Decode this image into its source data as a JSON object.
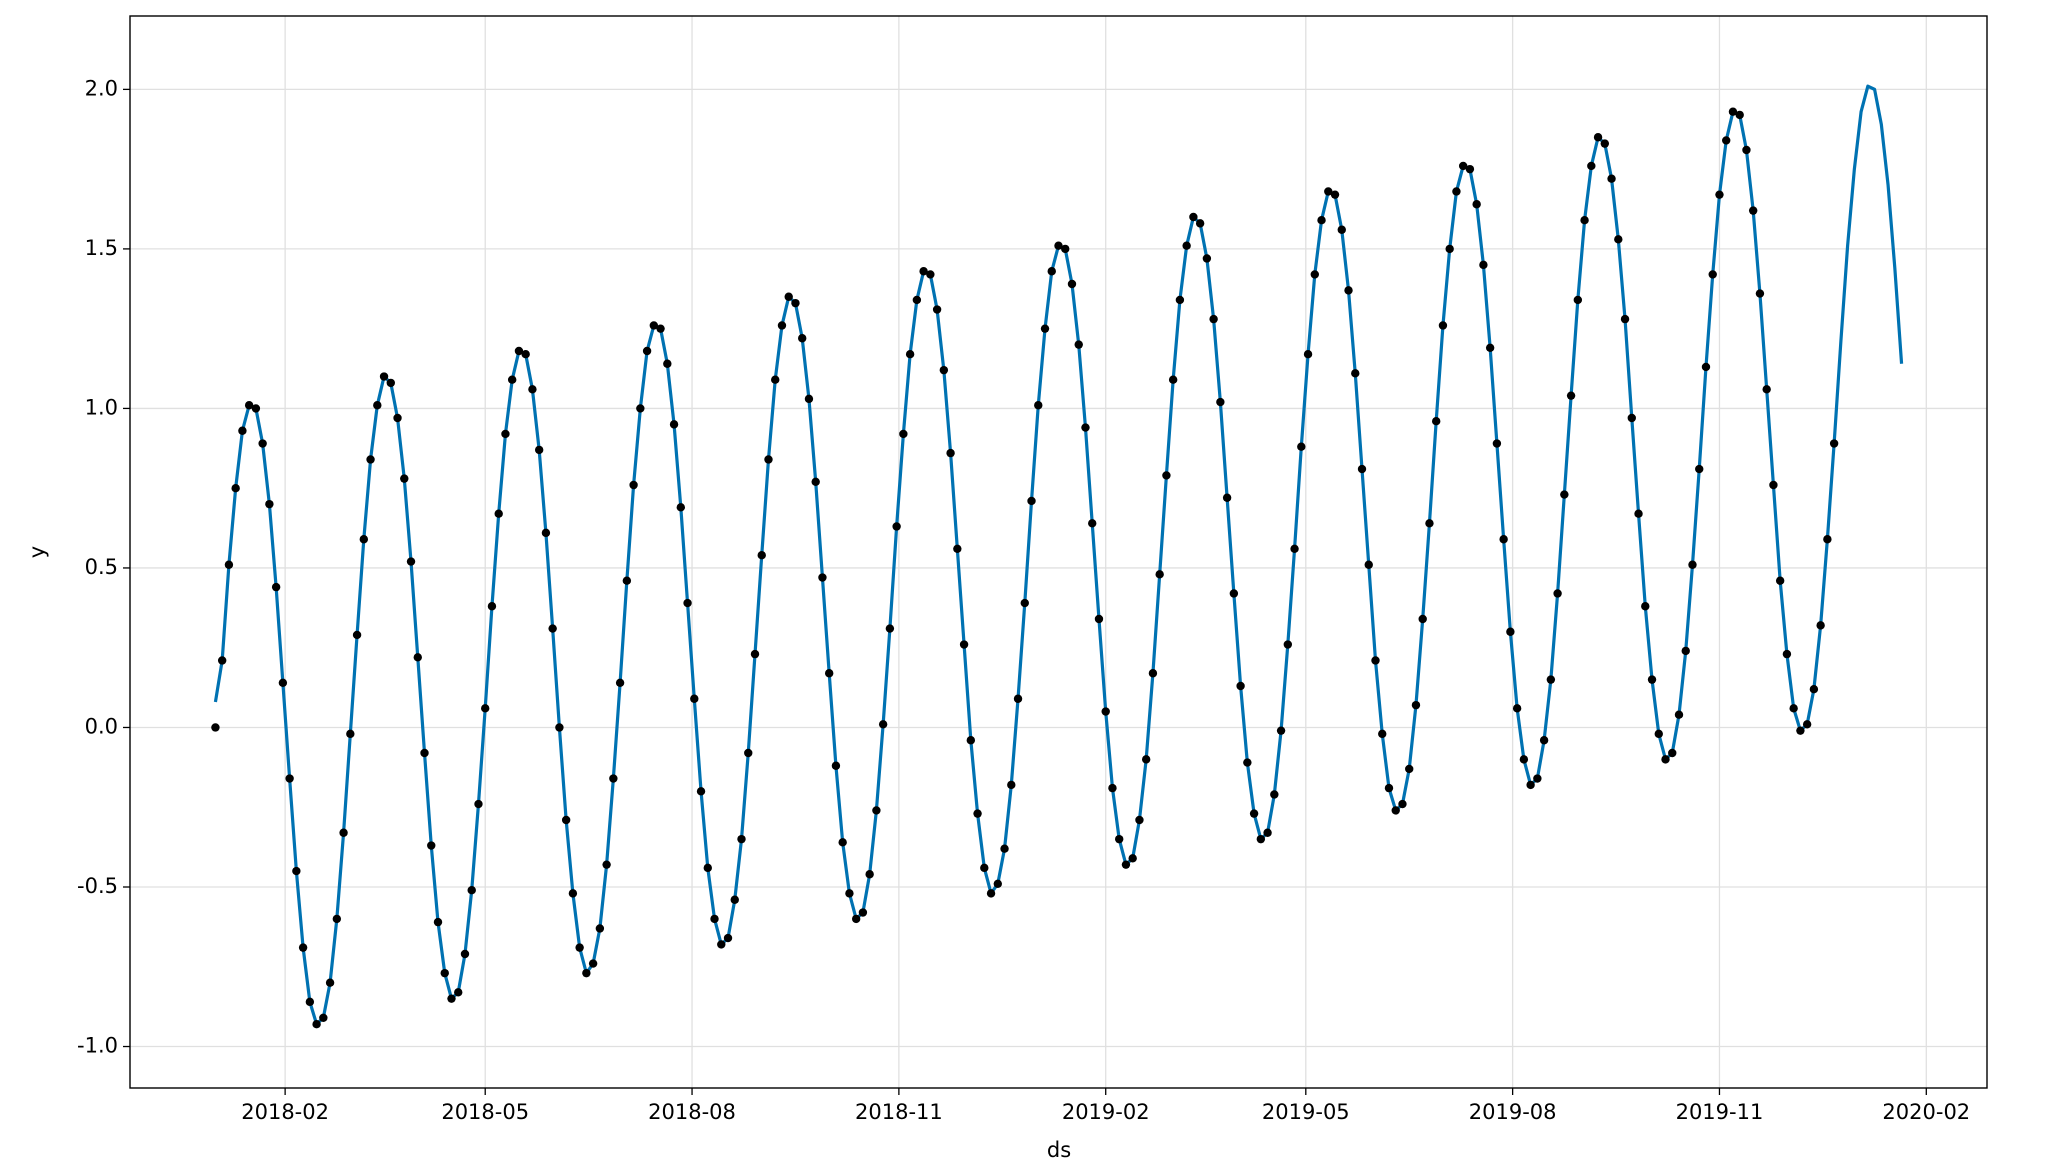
{
  "chart_data": {
    "type": "line",
    "xlabel": "ds",
    "ylabel": "y",
    "x": [
      0,
      3,
      6,
      9,
      12,
      15,
      18,
      21,
      24,
      27,
      30,
      33,
      36,
      39,
      42,
      45,
      48,
      51,
      54,
      57,
      60,
      63,
      66,
      69,
      72,
      75,
      78,
      81,
      84,
      87,
      90,
      93,
      96,
      99,
      102,
      105,
      108,
      111,
      114,
      117,
      120,
      123,
      126,
      129,
      132,
      135,
      138,
      141,
      144,
      147,
      150,
      153,
      156,
      159,
      162,
      165,
      168,
      171,
      174,
      177,
      180,
      183,
      186,
      189,
      192,
      195,
      198,
      201,
      204,
      207,
      210,
      213,
      216,
      219,
      222,
      225,
      228,
      231,
      234,
      237,
      240,
      243,
      246,
      249,
      252,
      255,
      258,
      261,
      264,
      267,
      270,
      273,
      276,
      279,
      282,
      285,
      288,
      291,
      294,
      297,
      300,
      303,
      306,
      309,
      312,
      315,
      318,
      321,
      324,
      327,
      330,
      333,
      336,
      339,
      342,
      345,
      348,
      351,
      354,
      357,
      360,
      363,
      366,
      369,
      372,
      375,
      378,
      381,
      384,
      387,
      390,
      393,
      396,
      399,
      402,
      405,
      408,
      411,
      414,
      417,
      420,
      423,
      426,
      429,
      432,
      435,
      438,
      441,
      444,
      447,
      450,
      453,
      456,
      459,
      462,
      465,
      468,
      471,
      474,
      477,
      480,
      483,
      486,
      489,
      492,
      495,
      498,
      501,
      504,
      507,
      510,
      513,
      516,
      519,
      522,
      525,
      528,
      531,
      534,
      537,
      540,
      543,
      546,
      549,
      552,
      555,
      558,
      561,
      564,
      567,
      570,
      573,
      576,
      579,
      582,
      585,
      588,
      591,
      594,
      597,
      600,
      603,
      606,
      609,
      612,
      615,
      618,
      621,
      624,
      627,
      630,
      633,
      636,
      639,
      642,
      645,
      648,
      651,
      654,
      657,
      660,
      663,
      666,
      669,
      672,
      675,
      678,
      681,
      684,
      687,
      690,
      693,
      696,
      699,
      702,
      705,
      708,
      711,
      714,
      717,
      720,
      723,
      726,
      729,
      732,
      735,
      738,
      741,
      744,
      747,
      750
    ],
    "series": [
      {
        "color": "#000000",
        "values": [
          0,
          0.21,
          0.51,
          0.75,
          0.93,
          1.01,
          1.0,
          0.89,
          0.7,
          0.44,
          0.14,
          -0.16,
          -0.45,
          -0.69,
          -0.86,
          -0.93,
          -0.91,
          -0.8,
          -0.6,
          -0.33,
          -0.02,
          0.29,
          0.59,
          0.84,
          1.01,
          1.1,
          1.08,
          0.97,
          0.78,
          0.52,
          0.22,
          -0.08,
          -0.37,
          -0.61,
          -0.77,
          -0.85,
          -0.83,
          -0.71,
          -0.51,
          -0.24,
          0.06,
          0.38,
          0.67,
          0.92,
          1.09,
          1.18,
          1.17,
          1.06,
          0.87,
          0.61,
          0.31,
          0.0,
          -0.29,
          -0.52,
          -0.69,
          -0.77,
          -0.74,
          -0.63,
          -0.43,
          -0.16,
          0.14,
          0.46,
          0.76,
          1.0,
          1.18,
          1.26,
          1.25,
          1.14,
          0.95,
          0.69,
          0.39,
          0.09,
          -0.2,
          -0.44,
          -0.6,
          -0.68,
          -0.66,
          -0.54,
          -0.35,
          -0.08,
          0.23,
          0.54,
          0.84,
          1.09,
          1.26,
          1.35,
          1.33,
          1.22,
          1.03,
          0.77,
          0.47,
          0.17,
          -0.12,
          -0.36,
          -0.52,
          -0.6,
          -0.58,
          -0.46,
          -0.26,
          0.01,
          0.31,
          0.63,
          0.92,
          1.17,
          1.34,
          1.43,
          1.42,
          1.31,
          1.12,
          0.86,
          0.56,
          0.26,
          -0.04,
          -0.27,
          -0.44,
          -0.52,
          -0.49,
          -0.38,
          -0.18,
          0.09,
          0.39,
          0.71,
          1.01,
          1.25,
          1.43,
          1.51,
          1.5,
          1.39,
          1.2,
          0.94,
          0.64,
          0.34,
          0.05,
          -0.19,
          -0.35,
          -0.43,
          -0.41,
          -0.29,
          -0.1,
          0.17,
          0.48,
          0.79,
          1.09,
          1.34,
          1.51,
          1.6,
          1.58,
          1.47,
          1.28,
          1.02,
          0.72,
          0.42,
          0.13,
          -0.11,
          -0.27,
          -0.35,
          -0.33,
          -0.21,
          -0.01,
          0.26,
          0.56,
          0.88,
          1.17,
          1.42,
          1.59,
          1.68,
          1.67,
          1.56,
          1.37,
          1.11,
          0.81,
          0.51,
          0.21,
          -0.02,
          -0.19,
          -0.26,
          -0.24,
          -0.13,
          0.07,
          0.34,
          0.64,
          0.96,
          1.26,
          1.5,
          1.68,
          1.76,
          1.75,
          1.64,
          1.45,
          1.19,
          0.89,
          0.59,
          0.3,
          0.06,
          -0.1,
          -0.18,
          -0.16,
          -0.04,
          0.15,
          0.42,
          0.73,
          1.04,
          1.34,
          1.59,
          1.76,
          1.85,
          1.83,
          1.72,
          1.53,
          1.28,
          0.97,
          0.67,
          0.38,
          0.15,
          -0.02,
          -0.1,
          -0.08,
          0.04,
          0.24,
          0.51,
          0.81,
          1.13,
          1.42,
          1.67,
          1.84,
          1.93,
          1.92,
          1.81,
          1.62,
          1.36,
          1.06,
          0.76,
          0.46,
          0.23,
          0.06,
          -0.01,
          0.01,
          0.12,
          0.32,
          0.59,
          0.89,
          null,
          null,
          null,
          null,
          null,
          null,
          null,
          null,
          null,
          null
        ]
      },
      {
        "color": "#0072b2",
        "values": [
          0.08,
          0.21,
          0.51,
          0.75,
          0.93,
          1.01,
          1.0,
          0.89,
          0.7,
          0.44,
          0.14,
          -0.16,
          -0.45,
          -0.69,
          -0.86,
          -0.93,
          -0.91,
          -0.8,
          -0.6,
          -0.33,
          -0.02,
          0.29,
          0.59,
          0.84,
          1.01,
          1.1,
          1.08,
          0.97,
          0.78,
          0.52,
          0.22,
          -0.08,
          -0.37,
          -0.61,
          -0.77,
          -0.85,
          -0.83,
          -0.71,
          -0.51,
          -0.24,
          0.06,
          0.38,
          0.67,
          0.92,
          1.09,
          1.18,
          1.17,
          1.06,
          0.87,
          0.61,
          0.31,
          0.0,
          -0.29,
          -0.52,
          -0.69,
          -0.77,
          -0.74,
          -0.63,
          -0.43,
          -0.16,
          0.14,
          0.46,
          0.76,
          1.0,
          1.18,
          1.26,
          1.25,
          1.14,
          0.95,
          0.69,
          0.39,
          0.09,
          -0.2,
          -0.44,
          -0.6,
          -0.68,
          -0.66,
          -0.54,
          -0.35,
          -0.08,
          0.23,
          0.54,
          0.84,
          1.09,
          1.26,
          1.35,
          1.33,
          1.22,
          1.03,
          0.77,
          0.47,
          0.17,
          -0.12,
          -0.36,
          -0.52,
          -0.6,
          -0.58,
          -0.46,
          -0.26,
          0.01,
          0.31,
          0.63,
          0.92,
          1.17,
          1.34,
          1.43,
          1.42,
          1.31,
          1.12,
          0.86,
          0.56,
          0.26,
          -0.04,
          -0.27,
          -0.44,
          -0.52,
          -0.49,
          -0.38,
          -0.18,
          0.09,
          0.39,
          0.71,
          1.01,
          1.25,
          1.43,
          1.51,
          1.5,
          1.39,
          1.2,
          0.94,
          0.64,
          0.34,
          0.05,
          -0.19,
          -0.35,
          -0.43,
          -0.41,
          -0.29,
          -0.1,
          0.17,
          0.48,
          0.79,
          1.09,
          1.34,
          1.51,
          1.6,
          1.58,
          1.47,
          1.28,
          1.02,
          0.72,
          0.42,
          0.13,
          -0.11,
          -0.27,
          -0.35,
          -0.33,
          -0.21,
          -0.01,
          0.26,
          0.56,
          0.88,
          1.17,
          1.42,
          1.59,
          1.68,
          1.67,
          1.56,
          1.37,
          1.11,
          0.81,
          0.51,
          0.21,
          -0.02,
          -0.19,
          -0.26,
          -0.24,
          -0.13,
          0.07,
          0.34,
          0.64,
          0.96,
          1.26,
          1.5,
          1.68,
          1.76,
          1.75,
          1.64,
          1.45,
          1.19,
          0.89,
          0.59,
          0.3,
          0.06,
          -0.1,
          -0.18,
          -0.16,
          -0.04,
          0.15,
          0.42,
          0.73,
          1.04,
          1.34,
          1.59,
          1.76,
          1.85,
          1.83,
          1.72,
          1.53,
          1.28,
          0.97,
          0.67,
          0.38,
          0.15,
          -0.02,
          -0.1,
          -0.08,
          0.04,
          0.24,
          0.51,
          0.81,
          1.13,
          1.42,
          1.67,
          1.84,
          1.93,
          1.92,
          1.81,
          1.62,
          1.36,
          1.06,
          0.76,
          0.46,
          0.23,
          0.06,
          -0.01,
          0.01,
          0.12,
          0.32,
          0.59,
          0.89,
          1.21,
          1.51,
          1.75,
          1.93,
          2.01,
          2.0,
          1.89,
          1.7,
          1.44,
          1.14
        ]
      }
    ],
    "xlim": [
      -38,
      788
    ],
    "xticks": [
      {
        "value": 31,
        "label": "2018-02"
      },
      {
        "value": 120,
        "label": "2018-05"
      },
      {
        "value": 212,
        "label": "2018-08"
      },
      {
        "value": 304,
        "label": "2018-11"
      },
      {
        "value": 396,
        "label": "2019-02"
      },
      {
        "value": 485,
        "label": "2019-05"
      },
      {
        "value": 577,
        "label": "2019-08"
      },
      {
        "value": 669,
        "label": "2019-11"
      },
      {
        "value": 761,
        "label": "2020-02"
      }
    ],
    "ylim": [
      -1.13,
      2.23
    ],
    "yticks": [
      {
        "value": -1,
        "label": "-1.0"
      },
      {
        "value": -0.5,
        "label": "-0.5"
      },
      {
        "value": 0,
        "label": "0.0"
      },
      {
        "value": 0.5,
        "label": "0.5"
      },
      {
        "value": 1,
        "label": "1.0"
      },
      {
        "value": 1.5,
        "label": "1.5"
      },
      {
        "value": 2,
        "label": "2.0"
      }
    ],
    "grid": true
  }
}
